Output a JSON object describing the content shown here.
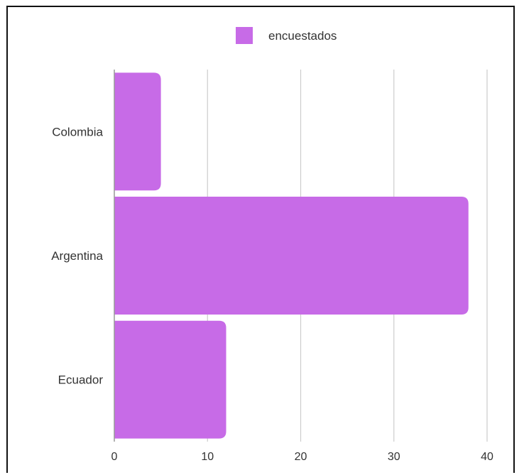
{
  "chart_data": {
    "type": "bar",
    "orientation": "horizontal",
    "categories": [
      "Colombia",
      "Argentina",
      "Ecuador"
    ],
    "series": [
      {
        "name": "encuestados",
        "values": [
          5,
          38,
          12
        ]
      }
    ],
    "xlim": [
      0,
      40
    ],
    "x_ticks": [
      0,
      10,
      20,
      30,
      40
    ],
    "x_tick_labels": [
      "0",
      "10",
      "20",
      "30",
      "40"
    ],
    "grid": true,
    "legend_position": "top-center",
    "bar_color": "#c76be7",
    "grid_color": "#cccccc",
    "axis_color": "#999999"
  }
}
